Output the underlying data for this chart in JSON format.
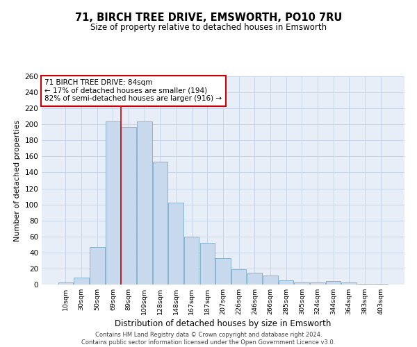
{
  "title": "71, BIRCH TREE DRIVE, EMSWORTH, PO10 7RU",
  "subtitle": "Size of property relative to detached houses in Emsworth",
  "xlabel": "Distribution of detached houses by size in Emsworth",
  "ylabel": "Number of detached properties",
  "bar_labels": [
    "10sqm",
    "30sqm",
    "50sqm",
    "69sqm",
    "89sqm",
    "109sqm",
    "128sqm",
    "148sqm",
    "167sqm",
    "187sqm",
    "207sqm",
    "226sqm",
    "246sqm",
    "266sqm",
    "285sqm",
    "305sqm",
    "324sqm",
    "344sqm",
    "364sqm",
    "383sqm",
    "403sqm"
  ],
  "bar_values": [
    3,
    9,
    47,
    204,
    197,
    204,
    153,
    102,
    60,
    52,
    33,
    19,
    15,
    11,
    5,
    3,
    3,
    4,
    3,
    1,
    1
  ],
  "bar_color": "#c9d9ed",
  "bar_edge_color": "#7aabcc",
  "vline_color": "#cc0000",
  "vline_x_index": 4,
  "annotation_text": "71 BIRCH TREE DRIVE: 84sqm\n← 17% of detached houses are smaller (194)\n82% of semi-detached houses are larger (916) →",
  "annotation_box_edgecolor": "#cc0000",
  "ylim": [
    0,
    260
  ],
  "yticks": [
    0,
    20,
    40,
    60,
    80,
    100,
    120,
    140,
    160,
    180,
    200,
    220,
    240,
    260
  ],
  "grid_color": "#c8d4e8",
  "bg_color": "#e8eef8",
  "title_fontsize": 10.5,
  "subtitle_fontsize": 8.5,
  "footer_line1": "Contains HM Land Registry data © Crown copyright and database right 2024.",
  "footer_line2": "Contains public sector information licensed under the Open Government Licence v3.0."
}
